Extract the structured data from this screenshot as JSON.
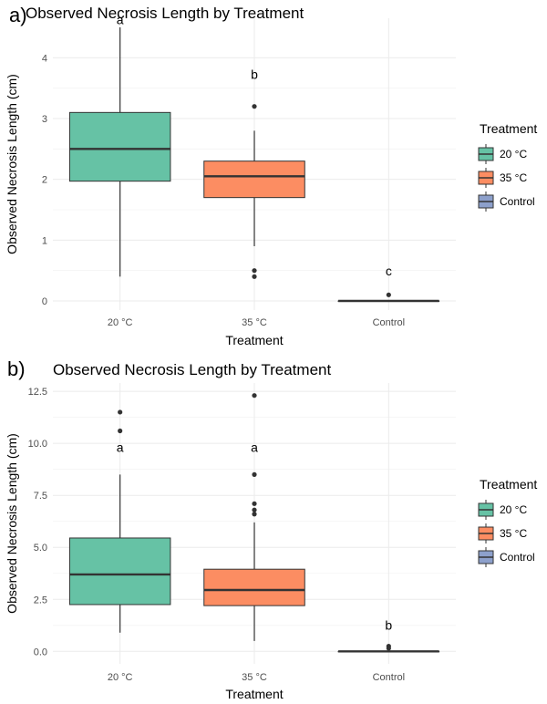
{
  "colors": {
    "20 °C": "#66c2a5",
    "35 °C": "#fc8d62",
    "Control": "#8da0cb"
  },
  "chart_data": [
    {
      "type": "boxplot",
      "panel_label": "a)",
      "title": "Observed Necrosis Length by Treatment",
      "xlabel": "Treatment",
      "ylabel": "Observed Necrosis Length (cm)",
      "ylim": [
        -0.15,
        4.65
      ],
      "yticks": [
        0,
        1,
        2,
        3,
        4
      ],
      "ytick_labels": [
        "0",
        "1",
        "2",
        "3",
        "4"
      ],
      "grid": true,
      "legend": {
        "title": "Treatment",
        "position": "right",
        "entries": [
          "20 °C",
          "35 °C",
          "Control"
        ]
      },
      "categories": [
        "20 °C",
        "35 °C",
        "Control"
      ],
      "boxes": [
        {
          "category": "20 °C",
          "min": 0.4,
          "q1": 1.97,
          "median": 2.5,
          "q3": 3.1,
          "max": 4.5,
          "outliers": [],
          "letter": "a",
          "letter_y": 4.55
        },
        {
          "category": "35 °C",
          "min": 0.9,
          "q1": 1.7,
          "median": 2.05,
          "q3": 2.3,
          "max": 2.8,
          "outliers": [
            3.2,
            0.5,
            0.4
          ],
          "letter": "b",
          "letter_y": 3.65
        },
        {
          "category": "Control",
          "min": 0.0,
          "q1": 0.0,
          "median": 0.0,
          "q3": 0.0,
          "max": 0.0,
          "outliers": [
            0.1
          ],
          "letter": "c",
          "letter_y": 0.42
        }
      ]
    },
    {
      "type": "boxplot",
      "panel_label": "b)",
      "title": "Observed Necrosis Length by Treatment",
      "xlabel": "Treatment",
      "ylabel": "Observed Necrosis Length (cm)",
      "ylim": [
        -0.6,
        12.9
      ],
      "yticks": [
        0,
        2.5,
        5,
        7.5,
        10,
        12.5
      ],
      "ytick_labels": [
        "0.0",
        "2.5",
        "5.0",
        "7.5",
        "10.0",
        "12.5"
      ],
      "grid": true,
      "legend": {
        "title": "Treatment",
        "position": "right",
        "entries": [
          "20 °C",
          "35 °C",
          "Control"
        ]
      },
      "categories": [
        "20 °C",
        "35 °C",
        "Control"
      ],
      "boxes": [
        {
          "category": "20 °C",
          "min": 0.9,
          "q1": 2.25,
          "median": 3.7,
          "q3": 5.45,
          "max": 8.5,
          "outliers": [
            11.5,
            10.6
          ],
          "letter": "a",
          "letter_y": 9.6
        },
        {
          "category": "35 °C",
          "min": 0.5,
          "q1": 2.2,
          "median": 2.95,
          "q3": 3.95,
          "max": 6.2,
          "outliers": [
            12.3,
            8.5,
            7.1,
            6.8,
            6.6
          ],
          "letter": "a",
          "letter_y": 9.6
        },
        {
          "category": "Control",
          "min": 0.0,
          "q1": 0.0,
          "median": 0.0,
          "q3": 0.0,
          "max": 0.0,
          "outliers": [
            0.25,
            0.15
          ],
          "letter": "b",
          "letter_y": 1.05
        }
      ]
    }
  ]
}
